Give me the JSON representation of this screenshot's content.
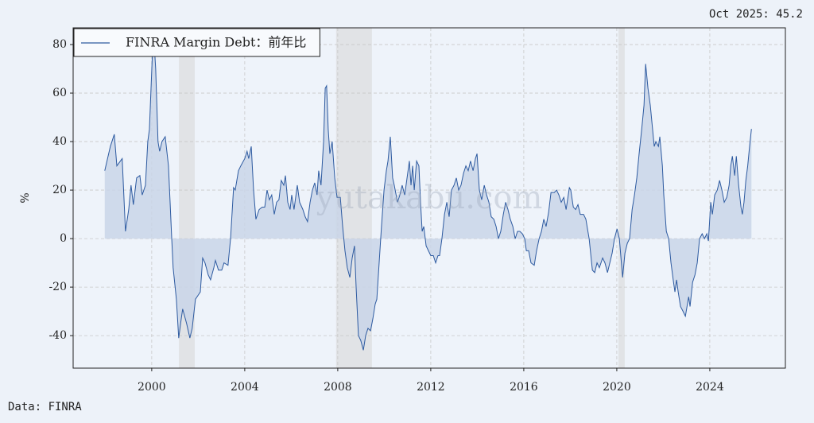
{
  "chart_data": {
    "type": "area-line",
    "annotation": "Oct 2025: 45.2",
    "source": "Data: FINRA",
    "watermark": "yutakabu.com",
    "y_label": "%",
    "xlim": [
      1996.62,
      2027.25
    ],
    "ylim": [
      -53.4,
      86.9
    ],
    "xticks": [
      2000,
      2004,
      2008,
      2012,
      2016,
      2020,
      2024
    ],
    "yticks": [
      -40,
      -20,
      0,
      20,
      40,
      60,
      80
    ],
    "grid": true,
    "legend": "upper left",
    "shaded_regions": [
      [
        2001.17,
        2001.85
      ],
      [
        2007.93,
        2009.47
      ],
      [
        2020.07,
        2020.34
      ]
    ],
    "x": [
      1997.98,
      1998.22,
      1998.39,
      1998.5,
      1998.73,
      1998.87,
      1999.01,
      1999.11,
      1999.21,
      1999.35,
      1999.49,
      1999.59,
      1999.73,
      1999.83,
      1999.9,
      1999.97,
      2000.07,
      2000.17,
      2000.27,
      2000.34,
      2000.44,
      2000.58,
      2000.72,
      2000.86,
      2000.92,
      2001.06,
      2001.16,
      2001.27,
      2001.33,
      2001.5,
      2001.64,
      2001.74,
      2001.88,
      2002.02,
      2002.09,
      2002.19,
      2002.29,
      2002.43,
      2002.53,
      2002.67,
      2002.74,
      2002.87,
      2003.01,
      2003.11,
      2003.28,
      2003.39,
      2003.52,
      2003.59,
      2003.73,
      2003.83,
      2004.0,
      2004.1,
      2004.17,
      2004.28,
      2004.38,
      2004.48,
      2004.62,
      2004.75,
      2004.86,
      2004.96,
      2005.06,
      2005.16,
      2005.27,
      2005.37,
      2005.47,
      2005.57,
      2005.68,
      2005.75,
      2005.85,
      2005.95,
      2006.02,
      2006.12,
      2006.26,
      2006.36,
      2006.5,
      2006.6,
      2006.7,
      2006.81,
      2006.91,
      2007.01,
      2007.11,
      2007.18,
      2007.28,
      2007.39,
      2007.46,
      2007.52,
      2007.59,
      2007.66,
      2007.76,
      2007.87,
      2007.97,
      2008.11,
      2008.21,
      2008.31,
      2008.41,
      2008.52,
      2008.62,
      2008.72,
      2008.79,
      2008.89,
      2008.99,
      2009.1,
      2009.2,
      2009.3,
      2009.41,
      2009.51,
      2009.61,
      2009.68,
      2009.78,
      2009.88,
      2009.99,
      2010.09,
      2010.16,
      2010.26,
      2010.36,
      2010.43,
      2010.57,
      2010.67,
      2010.77,
      2010.88,
      2010.98,
      2011.08,
      2011.15,
      2011.22,
      2011.29,
      2011.39,
      2011.49,
      2011.56,
      2011.63,
      2011.7,
      2011.8,
      2011.9,
      2012.0,
      2012.11,
      2012.21,
      2012.31,
      2012.38,
      2012.48,
      2012.59,
      2012.69,
      2012.79,
      2012.89,
      2013.0,
      2013.1,
      2013.2,
      2013.3,
      2013.41,
      2013.51,
      2013.61,
      2013.71,
      2013.82,
      2013.92,
      2013.99,
      2014.09,
      2014.19,
      2014.3,
      2014.4,
      2014.5,
      2014.6,
      2014.71,
      2014.81,
      2014.91,
      2015.01,
      2015.12,
      2015.22,
      2015.32,
      2015.42,
      2015.53,
      2015.63,
      2015.73,
      2015.83,
      2015.94,
      2016.04,
      2016.11,
      2016.21,
      2016.31,
      2016.45,
      2016.55,
      2016.66,
      2016.76,
      2016.86,
      2016.96,
      2017.07,
      2017.17,
      2017.31,
      2017.41,
      2017.51,
      2017.61,
      2017.72,
      2017.82,
      2017.96,
      2018.02,
      2018.13,
      2018.23,
      2018.33,
      2018.43,
      2018.57,
      2018.67,
      2018.81,
      2018.95,
      2019.05,
      2019.15,
      2019.25,
      2019.39,
      2019.49,
      2019.6,
      2019.7,
      2019.8,
      2019.9,
      2020.01,
      2020.11,
      2020.25,
      2020.35,
      2020.45,
      2020.55,
      2020.66,
      2020.76,
      2020.86,
      2020.96,
      2021.07,
      2021.17,
      2021.24,
      2021.34,
      2021.44,
      2021.51,
      2021.61,
      2021.68,
      2021.79,
      2021.85,
      2021.96,
      2022.02,
      2022.13,
      2022.23,
      2022.33,
      2022.44,
      2022.5,
      2022.57,
      2022.64,
      2022.74,
      2022.85,
      2022.95,
      2023.09,
      2023.15,
      2023.26,
      2023.36,
      2023.46,
      2023.56,
      2023.67,
      2023.77,
      2023.87,
      2023.94,
      2024.04,
      2024.11,
      2024.21,
      2024.32,
      2024.42,
      2024.52,
      2024.62,
      2024.73,
      2024.83,
      2024.9,
      2024.97,
      2025.07,
      2025.14,
      2025.24,
      2025.34,
      2025.4,
      2025.47,
      2025.55,
      2025.63,
      2025.71,
      2025.79
    ],
    "series": [
      {
        "name": "FINRA Margin Debt：前年比",
        "color": "#2d5aa0",
        "fill": "#c9d5e7",
        "values": [
          28,
          38,
          43,
          30,
          33,
          3,
          12,
          22,
          14,
          25,
          26,
          18,
          22,
          40,
          45,
          62,
          86,
          70,
          40,
          36,
          40,
          42,
          30,
          0,
          -12,
          -25,
          -41,
          -33,
          -29,
          -35,
          -41,
          -37,
          -25,
          -23,
          -22,
          -8,
          -10,
          -15,
          -17,
          -12,
          -9,
          -13,
          -13,
          -10,
          -11,
          0,
          21,
          20,
          28,
          30,
          33,
          36,
          33,
          38,
          20,
          8,
          12,
          13,
          13,
          20,
          16,
          18,
          10,
          15,
          16,
          24,
          22,
          26,
          15,
          12,
          18,
          12,
          22,
          15,
          12,
          9,
          7,
          15,
          20,
          23,
          18,
          28,
          22,
          40,
          62,
          63,
          45,
          35,
          40,
          25,
          17,
          17,
          5,
          -5,
          -12,
          -16,
          -8,
          -3,
          -20,
          -40,
          -42,
          -46,
          -40,
          -37,
          -38,
          -33,
          -27,
          -25,
          -10,
          5,
          20,
          28,
          32,
          42,
          25,
          22,
          15,
          18,
          22,
          18,
          25,
          32,
          22,
          30,
          20,
          32,
          30,
          15,
          3,
          5,
          -3,
          -5,
          -7,
          -7,
          -10,
          -7,
          -7,
          0,
          10,
          15,
          9,
          20,
          22,
          25,
          20,
          22,
          27,
          30,
          28,
          32,
          28,
          33,
          35,
          20,
          16,
          22,
          18,
          15,
          9,
          8,
          5,
          0,
          3,
          10,
          15,
          12,
          8,
          5,
          0,
          3,
          3,
          2,
          0,
          -5,
          -5,
          -10,
          -11,
          -5,
          0,
          3,
          8,
          5,
          11,
          19,
          19,
          20,
          18,
          15,
          17,
          12,
          21,
          20,
          13,
          12,
          14,
          10,
          10,
          8,
          0,
          -13,
          -14,
          -10,
          -12,
          -8,
          -10,
          -14,
          -10,
          -6,
          0,
          4,
          0,
          -16,
          -6,
          -2,
          0,
          12,
          18,
          25,
          35,
          45,
          55,
          72,
          62,
          55,
          48,
          38,
          40,
          38,
          42,
          30,
          18,
          3,
          0,
          -10,
          -18,
          -22,
          -17,
          -22,
          -28,
          -30,
          -32,
          -24,
          -28,
          -18,
          -15,
          -10,
          0,
          2,
          0,
          2,
          -1,
          15,
          10,
          18,
          20,
          24,
          20,
          15,
          17,
          22,
          30,
          34,
          26,
          34,
          22,
          13,
          10,
          15,
          24,
          30,
          38,
          45.2
        ]
      }
    ]
  }
}
